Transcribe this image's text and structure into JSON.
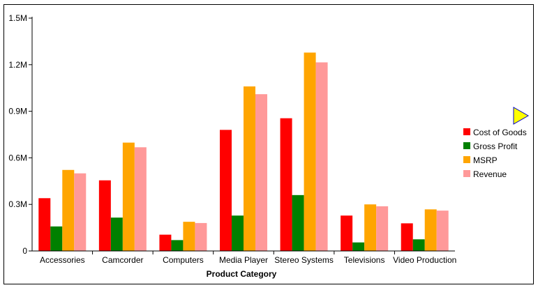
{
  "chart_data": {
    "type": "bar",
    "title": "",
    "xlabel": "Product Category",
    "ylabel": "",
    "ylim": [
      0,
      1500000
    ],
    "y_ticks": [
      0,
      300000,
      600000,
      900000,
      1200000,
      1500000
    ],
    "y_tick_labels": [
      "0",
      "0.3M",
      "0.6M",
      "0.9M",
      "1.2M",
      "1.5M"
    ],
    "grid": false,
    "legend_position": "right",
    "categories": [
      "Accessories",
      "Camcorder",
      "Computers",
      "Media Player",
      "Stereo Systems",
      "Televisions",
      "Video Production"
    ],
    "series": [
      {
        "name": "Cost of Goods",
        "color": "#ff0000",
        "values": [
          340000,
          455000,
          105000,
          780000,
          855000,
          228000,
          178000
        ]
      },
      {
        "name": "Gross Profit",
        "color": "#008000",
        "values": [
          158000,
          215000,
          70000,
          228000,
          360000,
          55000,
          75000
        ]
      },
      {
        "name": "MSRP",
        "color": "#ffa500",
        "values": [
          522000,
          698000,
          188000,
          1060000,
          1278000,
          300000,
          268000
        ]
      },
      {
        "name": "Revenue",
        "color": "#ff9999",
        "values": [
          500000,
          668000,
          180000,
          1010000,
          1215000,
          288000,
          260000
        ]
      }
    ]
  },
  "legend_nav": {
    "icon": "play-arrow-icon",
    "fill": "#ffff00",
    "stroke": "#0000cc"
  }
}
